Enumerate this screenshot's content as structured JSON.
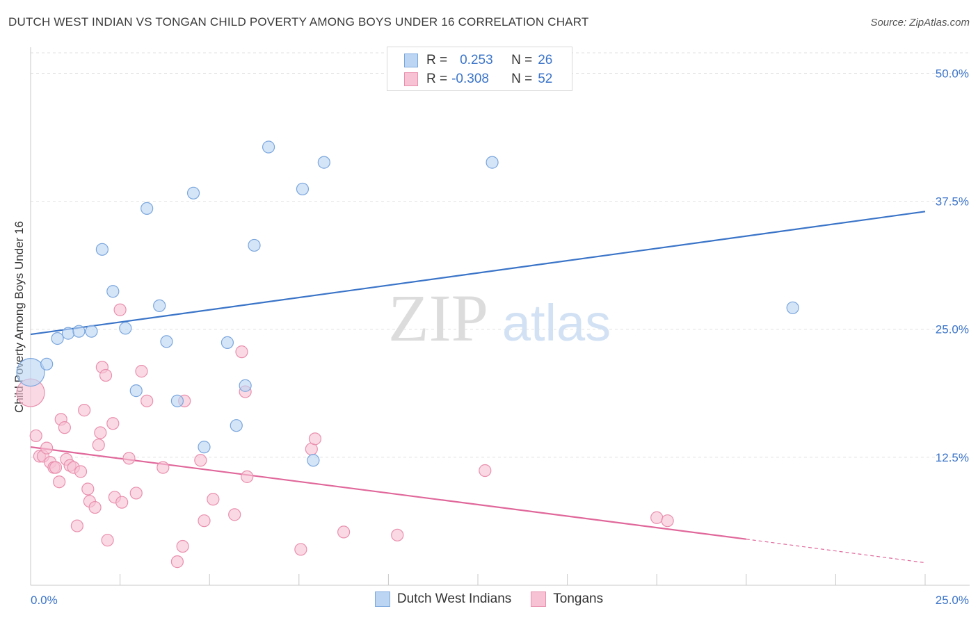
{
  "header": {
    "title": "DUTCH WEST INDIAN VS TONGAN CHILD POVERTY AMONG BOYS UNDER 16 CORRELATION CHART",
    "source": "Source: ZipAtlas.com"
  },
  "watermark": {
    "zip": "ZIP",
    "atlas": "atlas"
  },
  "legend_top": {
    "rows": [
      {
        "r_label": "R =",
        "r_value": "0.253",
        "n_label": "N =",
        "n_value": "26"
      },
      {
        "r_label": "R =",
        "r_value": "-0.308",
        "n_label": "N =",
        "n_value": "52"
      }
    ]
  },
  "colors": {
    "blue_fill": "#bcd5f3",
    "blue_stroke": "#7aa6dd",
    "blue_line": "#3a74c8",
    "pink_fill": "#f7c2d3",
    "pink_stroke": "#e98fae",
    "pink_line": "#e0679a",
    "tick_label": "#3b74c9"
  },
  "chart_data": {
    "type": "scatter",
    "title": "DUTCH WEST INDIAN VS TONGAN CHILD POVERTY AMONG BOYS UNDER 16 CORRELATION CHART",
    "xlabel": "",
    "ylabel": "Child Poverty Among Boys Under 16",
    "xlim": [
      0,
      25
    ],
    "ylim": [
      0,
      52
    ],
    "x_ticks": [
      0,
      2.5,
      5,
      7.5,
      10,
      12.5,
      15,
      17.5,
      20,
      22.5,
      25
    ],
    "x_tick_labels_shown": [
      {
        "value": 0,
        "label": "0.0%"
      },
      {
        "value": 25,
        "label": "25.0%"
      }
    ],
    "y_tick_labels": [
      {
        "value": 12.5,
        "label": "12.5%"
      },
      {
        "value": 25,
        "label": "25.0%"
      },
      {
        "value": 37.5,
        "label": "37.5%"
      },
      {
        "value": 50,
        "label": "50.0%"
      }
    ],
    "grid": true,
    "legend_position": "bottom-center",
    "series": [
      {
        "name": "Dutch West Indians",
        "r": 0.253,
        "n": 26,
        "trend": {
          "x0": 0,
          "y0": 24.5,
          "x1": 25,
          "y1": 36.5,
          "dashed_after_x": 25
        },
        "points": [
          {
            "x": 0,
            "y": 20.8,
            "big": true
          },
          {
            "x": 0.45,
            "y": 21.6
          },
          {
            "x": 0.75,
            "y": 24.1
          },
          {
            "x": 1.05,
            "y": 24.6
          },
          {
            "x": 1.35,
            "y": 24.8
          },
          {
            "x": 1.7,
            "y": 24.8
          },
          {
            "x": 2.0,
            "y": 32.8
          },
          {
            "x": 2.3,
            "y": 28.7
          },
          {
            "x": 2.65,
            "y": 25.1
          },
          {
            "x": 2.95,
            "y": 19.0
          },
          {
            "x": 3.25,
            "y": 36.8
          },
          {
            "x": 3.6,
            "y": 27.3
          },
          {
            "x": 3.8,
            "y": 23.8
          },
          {
            "x": 4.1,
            "y": 18.0
          },
          {
            "x": 4.55,
            "y": 38.3
          },
          {
            "x": 4.85,
            "y": 13.5
          },
          {
            "x": 5.5,
            "y": 23.7
          },
          {
            "x": 5.75,
            "y": 15.6
          },
          {
            "x": 6.0,
            "y": 19.5
          },
          {
            "x": 6.25,
            "y": 33.2
          },
          {
            "x": 6.65,
            "y": 42.8
          },
          {
            "x": 7.6,
            "y": 38.7
          },
          {
            "x": 7.9,
            "y": 12.2
          },
          {
            "x": 8.2,
            "y": 41.3
          },
          {
            "x": 12.9,
            "y": 41.3
          },
          {
            "x": 21.3,
            "y": 27.1
          }
        ]
      },
      {
        "name": "Tongans",
        "r": -0.308,
        "n": 52,
        "trend": {
          "x0": 0,
          "y0": 13.5,
          "x1": 20,
          "y1": 4.5,
          "dashed_after_x": 20,
          "x_end": 25,
          "y_end": 2.2
        },
        "points": [
          {
            "x": 0,
            "y": 18.8,
            "big": true
          },
          {
            "x": 0.15,
            "y": 14.6
          },
          {
            "x": 0.25,
            "y": 12.6
          },
          {
            "x": 0.35,
            "y": 12.6
          },
          {
            "x": 0.45,
            "y": 13.4
          },
          {
            "x": 0.55,
            "y": 12.0
          },
          {
            "x": 0.65,
            "y": 11.5
          },
          {
            "x": 0.7,
            "y": 11.5
          },
          {
            "x": 0.8,
            "y": 10.1
          },
          {
            "x": 0.85,
            "y": 16.2
          },
          {
            "x": 0.95,
            "y": 15.4
          },
          {
            "x": 1.0,
            "y": 12.3
          },
          {
            "x": 1.1,
            "y": 11.7
          },
          {
            "x": 1.2,
            "y": 11.5
          },
          {
            "x": 1.3,
            "y": 5.8
          },
          {
            "x": 1.4,
            "y": 11.1
          },
          {
            "x": 1.5,
            "y": 17.1
          },
          {
            "x": 1.6,
            "y": 9.4
          },
          {
            "x": 1.65,
            "y": 8.2
          },
          {
            "x": 1.8,
            "y": 7.6
          },
          {
            "x": 1.9,
            "y": 13.7
          },
          {
            "x": 1.95,
            "y": 14.9
          },
          {
            "x": 2.0,
            "y": 21.3
          },
          {
            "x": 2.1,
            "y": 20.5
          },
          {
            "x": 2.15,
            "y": 4.4
          },
          {
            "x": 2.3,
            "y": 15.8
          },
          {
            "x": 2.35,
            "y": 8.6
          },
          {
            "x": 2.5,
            "y": 26.9
          },
          {
            "x": 2.55,
            "y": 8.1
          },
          {
            "x": 2.75,
            "y": 12.4
          },
          {
            "x": 2.95,
            "y": 9.0
          },
          {
            "x": 3.1,
            "y": 20.9
          },
          {
            "x": 3.25,
            "y": 18.0
          },
          {
            "x": 3.7,
            "y": 11.5
          },
          {
            "x": 4.1,
            "y": 2.3
          },
          {
            "x": 4.25,
            "y": 3.8
          },
          {
            "x": 4.3,
            "y": 18.0
          },
          {
            "x": 4.75,
            "y": 12.2
          },
          {
            "x": 4.85,
            "y": 6.3
          },
          {
            "x": 5.1,
            "y": 8.4
          },
          {
            "x": 5.7,
            "y": 6.9
          },
          {
            "x": 5.9,
            "y": 22.8
          },
          {
            "x": 6.0,
            "y": 18.9
          },
          {
            "x": 6.05,
            "y": 10.6
          },
          {
            "x": 7.55,
            "y": 3.5
          },
          {
            "x": 7.85,
            "y": 13.3
          },
          {
            "x": 7.95,
            "y": 14.3
          },
          {
            "x": 8.75,
            "y": 5.2
          },
          {
            "x": 10.25,
            "y": 4.9
          },
          {
            "x": 12.7,
            "y": 11.2
          },
          {
            "x": 17.5,
            "y": 6.6
          },
          {
            "x": 17.8,
            "y": 6.3
          }
        ]
      }
    ]
  }
}
